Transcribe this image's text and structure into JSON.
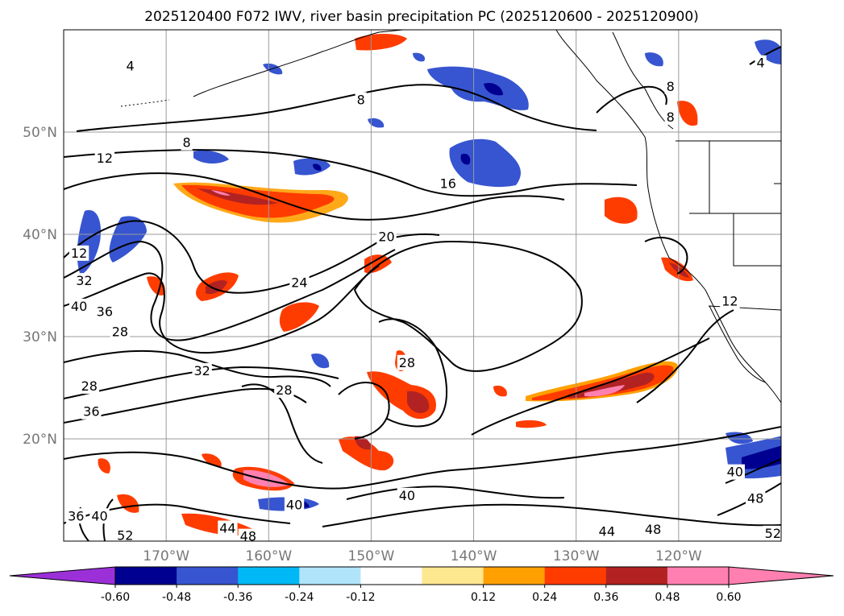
{
  "chart_data": {
    "type": "contour-map",
    "title": "2025120400 F072 IWV, river basin precipitation PC (2025120600 - 2025120900)",
    "map": {
      "lon_range": [
        -180,
        -110
      ],
      "lat_range": [
        10,
        60
      ],
      "lat_ticks": [
        {
          "value": 20,
          "label": "20°N"
        },
        {
          "value": 30,
          "label": "30°N"
        },
        {
          "value": 40,
          "label": "40°N"
        },
        {
          "value": 50,
          "label": "50°N"
        }
      ],
      "lon_ticks": [
        {
          "value": -170,
          "label": "170°W"
        },
        {
          "value": -160,
          "label": "160°W"
        },
        {
          "value": -150,
          "label": "150°W"
        },
        {
          "value": -140,
          "label": "140°W"
        },
        {
          "value": -130,
          "label": "130°W"
        },
        {
          "value": -120,
          "label": "120°W"
        }
      ],
      "grid": true
    },
    "colorbar": {
      "extend": "both",
      "colors": [
        "#9b30d8",
        "#000090",
        "#3755d0",
        "#00b8f5",
        "#b0e4fb",
        "#ffffff",
        "#fde78f",
        "#ffa000",
        "#ff3c00",
        "#b22222",
        "#ff80b0",
        "#ff80b0"
      ],
      "tick_values": [
        "-0.60",
        "-0.48",
        "-0.36",
        "-0.24",
        "-0.12",
        "0.12",
        "0.24",
        "0.36",
        "0.48",
        "0.60"
      ]
    },
    "iwv_contour_labels": [
      {
        "text": "4",
        "lon": -173.5,
        "lat": 56.5
      },
      {
        "text": "8",
        "lon": -151.0,
        "lat": 53.2
      },
      {
        "text": "8",
        "lon": -168.0,
        "lat": 49.0
      },
      {
        "text": "12",
        "lon": -176.0,
        "lat": 47.5
      },
      {
        "text": "16",
        "lon": -142.5,
        "lat": 45.0
      },
      {
        "text": "20",
        "lon": -148.5,
        "lat": 39.8
      },
      {
        "text": "24",
        "lon": -157.0,
        "lat": 35.3
      },
      {
        "text": "28",
        "lon": -174.5,
        "lat": 30.5
      },
      {
        "text": "32",
        "lon": -166.5,
        "lat": 26.7
      },
      {
        "text": "36",
        "lon": -176.0,
        "lat": 32.5
      },
      {
        "text": "40",
        "lon": -178.5,
        "lat": 33.0
      },
      {
        "text": "28",
        "lon": -177.5,
        "lat": 25.2
      },
      {
        "text": "36",
        "lon": -177.3,
        "lat": 22.7
      },
      {
        "text": "28",
        "lon": -158.5,
        "lat": 24.8
      },
      {
        "text": "28",
        "lon": -146.5,
        "lat": 27.5
      },
      {
        "text": "40",
        "lon": -146.5,
        "lat": 14.5
      },
      {
        "text": "40",
        "lon": -157.5,
        "lat": 13.6
      },
      {
        "text": "44",
        "lon": -164.0,
        "lat": 11.3
      },
      {
        "text": "48",
        "lon": -162.0,
        "lat": 10.5
      },
      {
        "text": "44",
        "lon": -127.0,
        "lat": 11.0
      },
      {
        "text": "48",
        "lon": -122.5,
        "lat": 11.2
      },
      {
        "text": "52",
        "lon": -110.8,
        "lat": 10.8
      },
      {
        "text": "52",
        "lon": -174.0,
        "lat": 10.6
      },
      {
        "text": "40",
        "lon": -114.5,
        "lat": 16.8
      },
      {
        "text": "48",
        "lon": -112.5,
        "lat": 14.2
      },
      {
        "text": "36",
        "lon": -178.8,
        "lat": 12.5
      },
      {
        "text": "40",
        "lon": -176.5,
        "lat": 12.5
      },
      {
        "text": "4",
        "lon": -112.0,
        "lat": 56.8
      },
      {
        "text": "8",
        "lon": -120.8,
        "lat": 54.5
      },
      {
        "text": "8",
        "lon": -120.8,
        "lat": 51.5
      },
      {
        "text": "12",
        "lon": -178.5,
        "lat": 38.2
      },
      {
        "text": "12",
        "lon": -115.0,
        "lat": 33.5
      },
      {
        "text": "32",
        "lon": -178.0,
        "lat": 35.5
      }
    ]
  }
}
